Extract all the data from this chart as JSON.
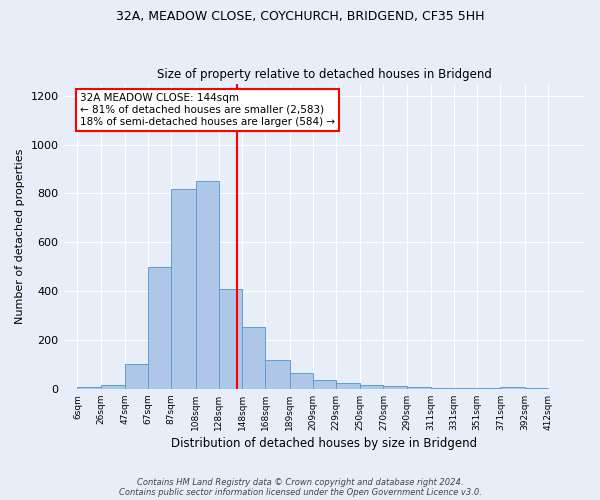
{
  "title1": "32A, MEADOW CLOSE, COYCHURCH, BRIDGEND, CF35 5HH",
  "title2": "Size of property relative to detached houses in Bridgend",
  "xlabel": "Distribution of detached houses by size in Bridgend",
  "ylabel": "Number of detached properties",
  "bin_labels": [
    "6sqm",
    "26sqm",
    "47sqm",
    "67sqm",
    "87sqm",
    "108sqm",
    "128sqm",
    "148sqm",
    "168sqm",
    "189sqm",
    "209sqm",
    "229sqm",
    "250sqm",
    "270sqm",
    "290sqm",
    "311sqm",
    "331sqm",
    "351sqm",
    "371sqm",
    "392sqm",
    "412sqm"
  ],
  "bin_edges": [
    6,
    26,
    47,
    67,
    87,
    108,
    128,
    148,
    168,
    189,
    209,
    229,
    250,
    270,
    290,
    311,
    331,
    351,
    371,
    392,
    412
  ],
  "bar_heights": [
    8,
    15,
    100,
    500,
    820,
    850,
    410,
    255,
    120,
    65,
    35,
    22,
    14,
    12,
    8,
    5,
    5,
    3,
    8,
    3
  ],
  "bar_color": "#aec6e8",
  "bar_edgecolor": "#5a9fd4",
  "property_line_x": 144,
  "property_line_color": "red",
  "annotation_title": "32A MEADOW CLOSE: 144sqm",
  "annotation_line1": "← 81% of detached houses are smaller (2,583)",
  "annotation_line2": "18% of semi-detached houses are larger (584) →",
  "annotation_box_color": "white",
  "annotation_box_edgecolor": "red",
  "ylim": [
    0,
    1250
  ],
  "yticks": [
    0,
    200,
    400,
    600,
    800,
    1000,
    1200
  ],
  "footer1": "Contains HM Land Registry data © Crown copyright and database right 2024.",
  "footer2": "Contains public sector information licensed under the Open Government Licence v3.0.",
  "bg_color": "#e8eef8",
  "plot_bg_color": "#e8eef8"
}
